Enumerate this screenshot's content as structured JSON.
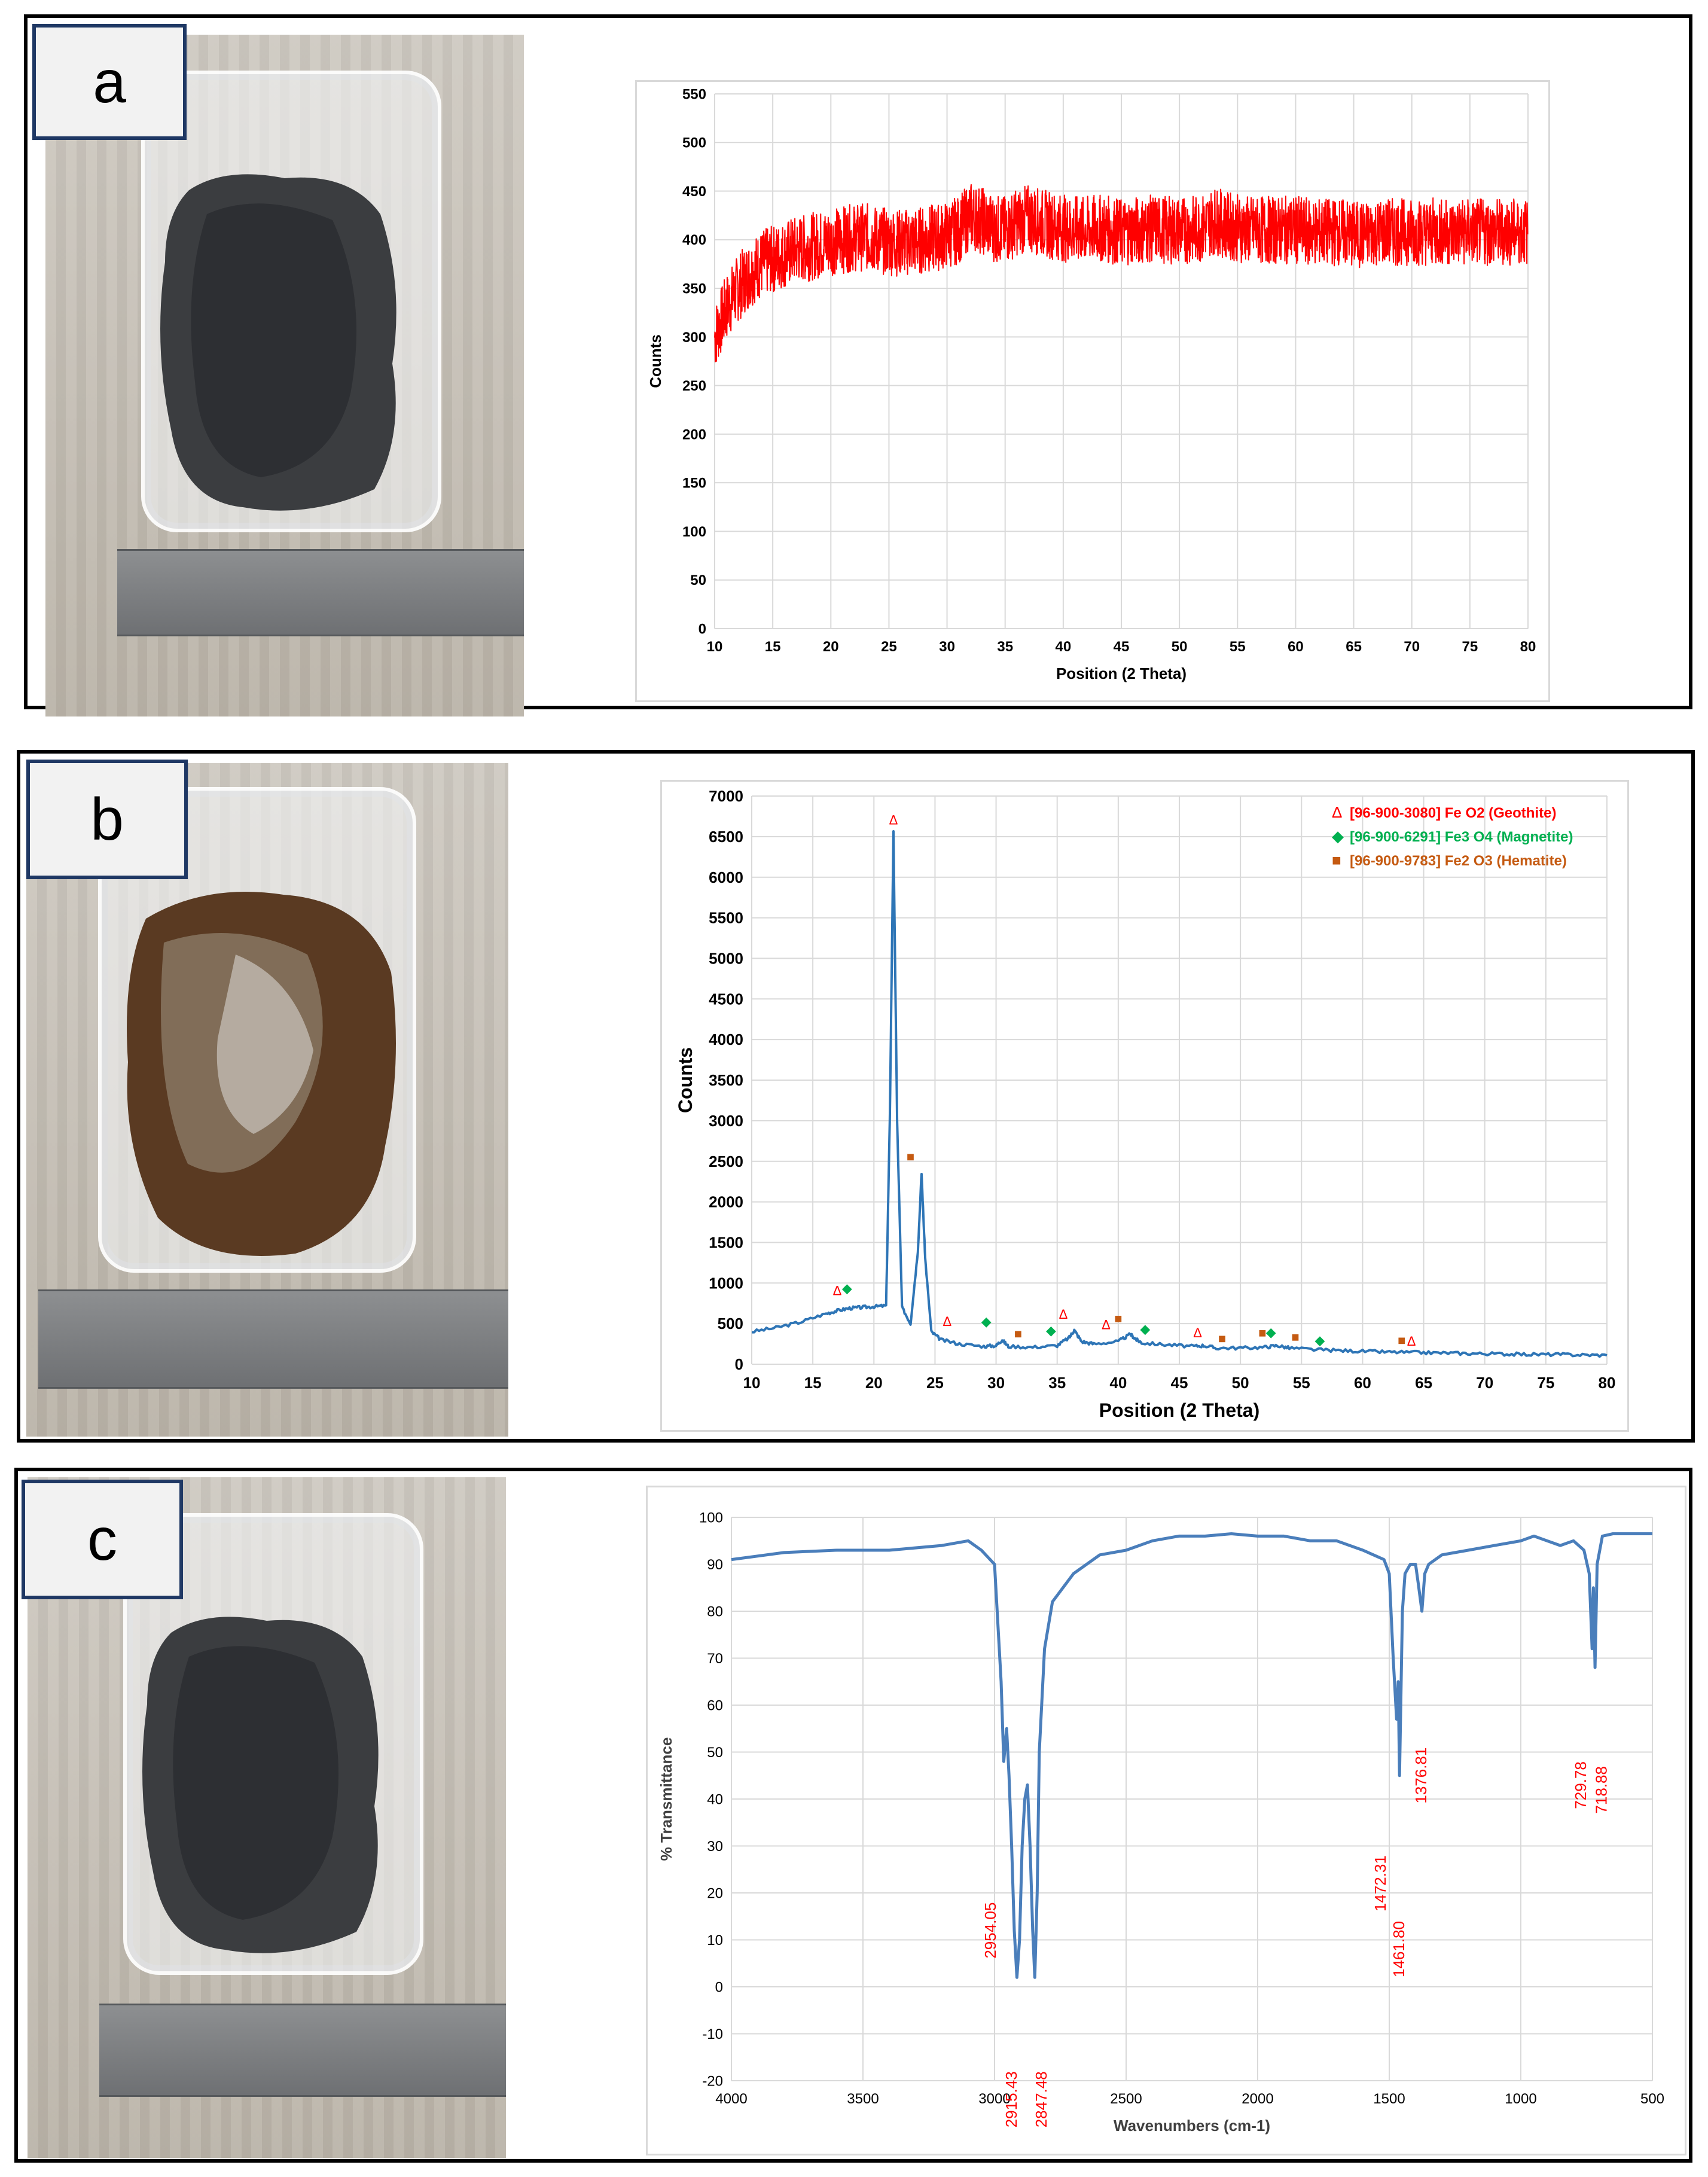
{
  "panels": [
    {
      "label": "a",
      "chart": {
        "type": "line",
        "xlabel": "Position (2 Theta)",
        "ylabel": "Counts",
        "xlim": [
          10,
          80
        ],
        "ylim": [
          0,
          550
        ],
        "xticks": [
          10,
          15,
          20,
          25,
          30,
          35,
          40,
          45,
          50,
          55,
          60,
          65,
          70,
          75,
          80
        ],
        "yticks": [
          0,
          50,
          100,
          150,
          200,
          250,
          300,
          350,
          400,
          450,
          500,
          550
        ],
        "color": "#ff0000",
        "grid": true,
        "series": [
          {
            "x": [
              10,
              11,
              12,
              13,
              14,
              15,
              16,
              17,
              18,
              19,
              20,
              21,
              22,
              23,
              24,
              25,
              26,
              27,
              28,
              29,
              30,
              31,
              32,
              33,
              34,
              35,
              36,
              37,
              38,
              39,
              40,
              41,
              42,
              43,
              44,
              45,
              46,
              47,
              48,
              49,
              50,
              51,
              52,
              53,
              54,
              55,
              56,
              57,
              58,
              59,
              60,
              61,
              62,
              63,
              64,
              65,
              66,
              67,
              68,
              69,
              70,
              71,
              72,
              73,
              74,
              75,
              76,
              77,
              78,
              79,
              80
            ],
            "y": [
              300,
              330,
              350,
              365,
              375,
              380,
              385,
              390,
              392,
              395,
              398,
              400,
              402,
              403,
              400,
              398,
              397,
              398,
              400,
              402,
              405,
              410,
              425,
              420,
              412,
              410,
              418,
              422,
              418,
              415,
              412,
              410,
              410,
              412,
              410,
              408,
              410,
              410,
              412,
              410,
              410,
              410,
              412,
              420,
              415,
              412,
              410,
              410,
              410,
              410,
              410,
              408,
              408,
              408,
              408,
              405,
              405,
              408,
              408,
              408,
              408,
              408,
              408,
              408,
              408,
              408,
              408,
              408,
              408,
              408,
              408
            ]
          }
        ]
      }
    },
    {
      "label": "b",
      "chart": {
        "type": "line",
        "xlabel": "Position (2 Theta)",
        "ylabel": "Counts",
        "xlim": [
          10,
          80
        ],
        "ylim": [
          0,
          7000
        ],
        "xticks": [
          10,
          15,
          20,
          25,
          30,
          35,
          40,
          45,
          50,
          55,
          60,
          65,
          70,
          75,
          80
        ],
        "yticks": [
          0,
          500,
          1000,
          1500,
          2000,
          2500,
          3000,
          3500,
          4000,
          4500,
          5000,
          5500,
          6000,
          6500,
          7000
        ],
        "color": "#2e75b6",
        "grid": true,
        "series": [
          {
            "x": [
              10,
              12,
              14,
              16,
              17,
              18,
              19,
              20,
              21,
              21.3,
              21.6,
              21.9,
              22.3,
              23,
              23.6,
              23.9,
              24.2,
              24.7,
              25.5,
              27,
              29,
              30,
              30.5,
              31,
              33,
              35,
              36,
              36.4,
              37,
              38,
              40,
              41,
              41.5,
              42,
              44,
              46,
              47,
              48,
              50,
              52,
              53,
              54,
              56,
              58,
              60,
              62,
              64,
              66,
              68,
              70,
              72,
              74,
              76,
              78,
              80
            ],
            "y": [
              400,
              450,
              520,
              620,
              660,
              690,
              700,
              710,
              720,
              3000,
              6550,
              3000,
              700,
              500,
              1400,
              2350,
              1300,
              400,
              300,
              250,
              220,
              230,
              300,
              220,
              210,
              230,
              330,
              420,
              280,
              250,
              280,
              370,
              300,
              260,
              240,
              220,
              230,
              200,
              200,
              210,
              230,
              200,
              180,
              170,
              160,
              150,
              145,
              140,
              135,
              130,
              125,
              120,
              120,
              115,
              110
            ]
          }
        ],
        "markers": [
          {
            "name": "Geothite",
            "x": [
              17,
              21.6,
              26,
              35.5,
              39,
              46.5,
              64
            ]
          },
          {
            "name": "Magnetite",
            "x": [
              17.8,
              29.2,
              34.5,
              42.2,
              52.5,
              56.5
            ]
          },
          {
            "name": "Hematite",
            "x": [
              23,
              31.8,
              40,
              48.5,
              51.8,
              54.5,
              63.2
            ]
          }
        ],
        "marker_y": {
          "Geothite": [
            850,
            6650,
            470,
            560,
            430,
            330,
            230
          ],
          "Magnetite": [
            880,
            470,
            360,
            380,
            340,
            240
          ],
          "Hematite": [
            2500,
            320,
            510,
            260,
            330,
            280,
            240
          ]
        },
        "legend": [
          {
            "symbol": "Δ",
            "text": "[96-900-3080] Fe O2 (Geothite)",
            "color": "#ff0000"
          },
          {
            "symbol": "◆",
            "text": "[96-900-6291] Fe3 O4 (Magnetite)",
            "color": "#00b050"
          },
          {
            "symbol": "■",
            "text": "[96-900-9783] Fe2 O3 (Hematite)",
            "color": "#c55a11"
          }
        ],
        "legend_position": "top-right"
      }
    },
    {
      "label": "c",
      "chart": {
        "type": "line",
        "xlabel": "Wavenumbers (cm-1)",
        "ylabel": "% Transmittance",
        "xlim": [
          4000,
          500
        ],
        "ylim": [
          -20,
          100
        ],
        "xticks": [
          4000,
          3500,
          3000,
          2500,
          2000,
          1500,
          1000,
          500
        ],
        "yticks": [
          -20,
          -10,
          0,
          10,
          20,
          30,
          40,
          50,
          60,
          70,
          80,
          90,
          100
        ],
        "color": "#4a7ebb",
        "grid": true,
        "series": [
          {
            "x": [
              4000,
              3800,
              3600,
              3400,
              3200,
              3100,
              3050,
              3000,
              2990,
              2975,
              2965,
              2954,
              2945,
              2935,
              2925,
              2915,
              2905,
              2895,
              2885,
              2875,
              2865,
              2855,
              2847,
              2838,
              2830,
              2810,
              2780,
              2700,
              2600,
              2500,
              2400,
              2300,
              2200,
              2100,
              2000,
              1900,
              1800,
              1700,
              1600,
              1560,
              1520,
              1500,
              1485,
              1472,
              1466,
              1461,
              1450,
              1440,
              1420,
              1400,
              1390,
              1376,
              1365,
              1350,
              1300,
              1200,
              1100,
              1000,
              950,
              900,
              850,
              800,
              760,
              740,
              729,
              724,
              718,
              710,
              690,
              650,
              600,
              500
            ],
            "y": [
              91,
              92.5,
              93,
              93,
              94,
              95,
              93,
              90,
              80,
              65,
              48,
              55,
              45,
              30,
              12,
              2,
              10,
              30,
              40,
              43,
              30,
              12,
              2,
              20,
              50,
              72,
              82,
              88,
              92,
              93,
              95,
              96,
              96,
              96.5,
              96,
              96,
              95,
              95,
              93,
              92,
              91,
              88,
              70,
              57,
              65,
              45,
              80,
              88,
              90,
              90,
              86,
              80,
              88,
              90,
              92,
              93,
              94,
              95,
              96,
              95,
              94,
              95,
              93,
              88,
              72,
              85,
              68,
              90,
              96,
              96.5,
              96.5,
              96.5
            ]
          }
        ],
        "annotations": [
          "2954.05",
          "2915.43",
          "2847.48",
          "1472.31",
          "1461.80",
          "1376.81",
          "729.78",
          "718.88"
        ]
      }
    }
  ]
}
